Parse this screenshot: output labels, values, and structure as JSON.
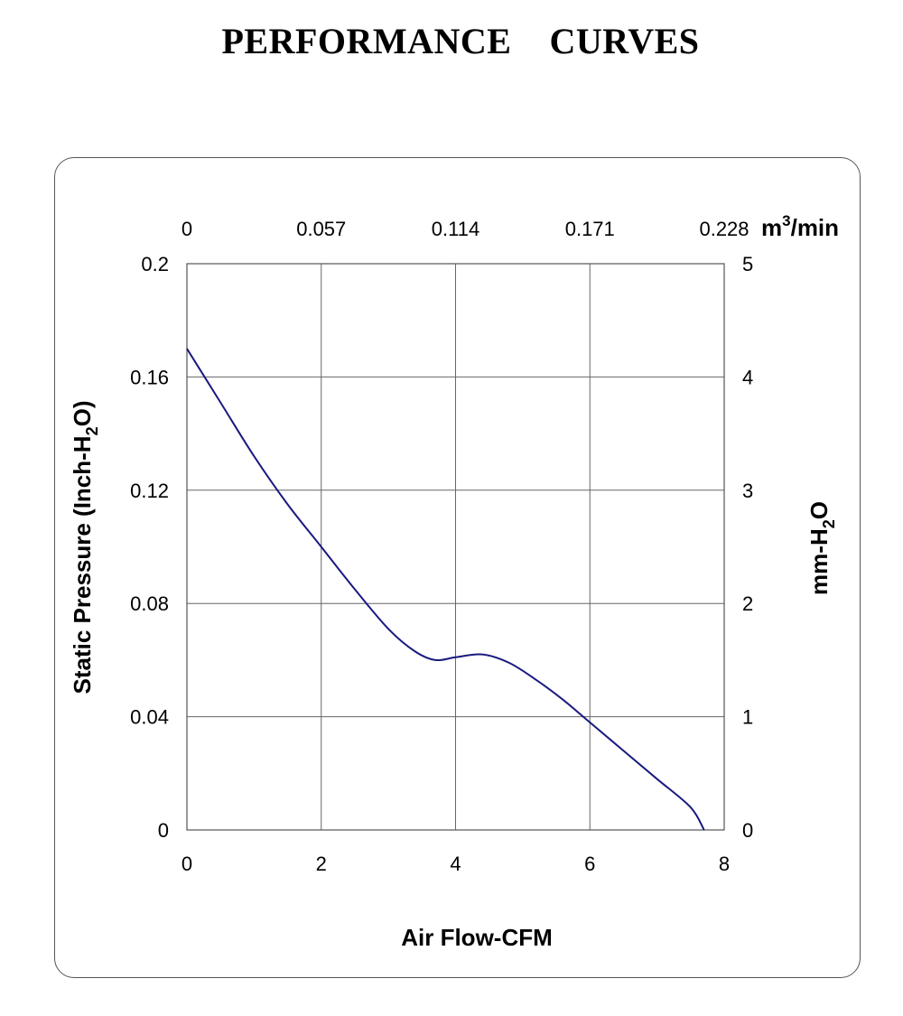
{
  "page_title": "PERFORMANCE    CURVES",
  "chart_data": {
    "type": "line",
    "xlabel": "Air Flow-CFM",
    "ylabel": "Static Pressure (Inch-H2O)",
    "ylabel_parts": [
      "Static Pressure (Inch-H",
      "2",
      "O)"
    ],
    "y2label_parts": [
      "mm-H",
      "2",
      "O"
    ],
    "x2label_parts": [
      "m",
      "3",
      "/min"
    ],
    "xlim": [
      0,
      8
    ],
    "ylim": [
      0,
      0.2
    ],
    "x_ticks": [
      "0",
      "2",
      "4",
      "6",
      "8"
    ],
    "y_ticks": [
      "0",
      "0.04",
      "0.08",
      "0.12",
      "0.16",
      "0.2"
    ],
    "y2_ticks": [
      "0",
      "1",
      "2",
      "3",
      "4",
      "5"
    ],
    "x2_ticks": [
      "0",
      "0.057",
      "0.114",
      "0.171",
      "0.228"
    ],
    "grid": true,
    "color": "#1a1a80",
    "series": [
      {
        "x": [
          0,
          0.5,
          1.0,
          1.5,
          2.0,
          2.5,
          3.0,
          3.4,
          3.7,
          4.0,
          4.4,
          4.8,
          5.2,
          5.6,
          6.0,
          6.5,
          7.0,
          7.5,
          7.7
        ],
        "y": [
          0.17,
          0.151,
          0.132,
          0.115,
          0.1,
          0.085,
          0.071,
          0.063,
          0.06,
          0.061,
          0.062,
          0.059,
          0.053,
          0.046,
          0.038,
          0.028,
          0.018,
          0.008,
          0.0
        ]
      }
    ]
  }
}
